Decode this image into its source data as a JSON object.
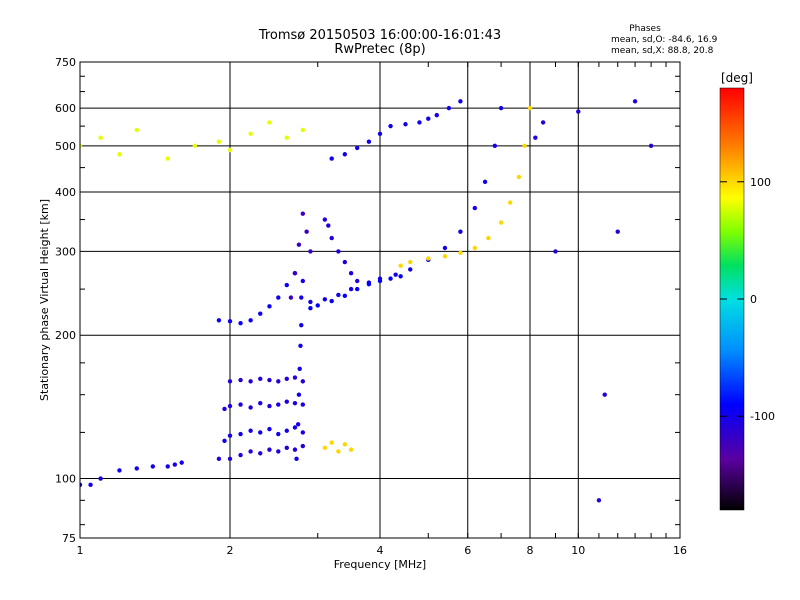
{
  "chart_data": {
    "type": "scatter",
    "title": "Tromsø 20150503 16:00:00-16:01:43",
    "subtitle": "RwPretec (8p)",
    "xlabel": "Frequency [MHz]",
    "ylabel": "Stationary phase Virtual Height [km]",
    "x_scale": "log",
    "y_scale": "log",
    "xlim": [
      1,
      16
    ],
    "ylim": [
      75,
      750
    ],
    "x_ticks": [
      1,
      2,
      4,
      6,
      8,
      10,
      16
    ],
    "y_ticks": [
      75,
      100,
      200,
      300,
      400,
      500,
      600,
      750
    ],
    "grid": true,
    "phases": {
      "title": "Phases",
      "line1": "mean, sd,O: -84.6, 16.9",
      "line2": "mean, sd,X:  88.8, 20.8"
    },
    "colorbar": {
      "label": "[deg]",
      "range": [
        -180,
        180
      ],
      "ticks": [
        100,
        0,
        -100
      ],
      "colormap": "rainbow"
    },
    "series": [
      {
        "trace": "low-trace-90-105km",
        "x": [
          1.0,
          1.05,
          1.1,
          1.2,
          1.3,
          1.4,
          1.5,
          1.55,
          1.6
        ],
        "y": [
          97,
          97,
          100,
          104,
          105,
          106,
          106,
          107,
          108
        ],
        "phase": -100
      },
      {
        "trace": "es-blocks-2-2.8MHz-a",
        "x": [
          1.9,
          2.0,
          2.1,
          2.2,
          2.3,
          2.4,
          2.5,
          2.6,
          2.7,
          2.8
        ],
        "y": [
          110,
          110,
          112,
          114,
          113,
          115,
          114,
          116,
          115,
          117
        ],
        "phase": -110
      },
      {
        "trace": "es-blocks-2-2.8MHz-b",
        "x": [
          1.95,
          2.0,
          2.1,
          2.2,
          2.3,
          2.4,
          2.5,
          2.6,
          2.7,
          2.8
        ],
        "y": [
          120,
          123,
          124,
          126,
          125,
          127,
          124,
          126,
          128,
          125
        ],
        "phase": -100
      },
      {
        "trace": "es-blocks-2-2.8MHz-c",
        "x": [
          1.95,
          2.0,
          2.1,
          2.2,
          2.3,
          2.4,
          2.5,
          2.6,
          2.7,
          2.8
        ],
        "y": [
          140,
          142,
          143,
          141,
          144,
          142,
          143,
          145,
          144,
          143
        ],
        "phase": -105
      },
      {
        "trace": "es-blocks-2-2.8MHz-d",
        "x": [
          2.0,
          2.1,
          2.2,
          2.3,
          2.4,
          2.5,
          2.6,
          2.7,
          2.8
        ],
        "y": [
          160,
          161,
          160,
          162,
          161,
          160,
          162,
          163,
          160
        ],
        "phase": -110
      },
      {
        "trace": "es-vertical-2.75MHz",
        "x": [
          2.72,
          2.74,
          2.75,
          2.76,
          2.77,
          2.78,
          2.78,
          2.8
        ],
        "y": [
          110,
          130,
          150,
          170,
          190,
          210,
          240,
          260
        ],
        "phase": -100
      },
      {
        "trace": "f1-rise-1.9-2.8MHz",
        "x": [
          1.9,
          2.0,
          2.1,
          2.2,
          2.3,
          2.4,
          2.5,
          2.6,
          2.7
        ],
        "y": [
          215,
          214,
          212,
          215,
          222,
          230,
          240,
          255,
          270
        ],
        "phase": -95
      },
      {
        "trace": "spike-2.8MHz",
        "x": [
          2.65,
          2.7,
          2.75,
          2.8,
          2.85,
          2.9
        ],
        "y": [
          240,
          270,
          310,
          360,
          330,
          300
        ],
        "phase": -120
      },
      {
        "trace": "spike-3.2MHz",
        "x": [
          3.1,
          3.15,
          3.2,
          3.3,
          3.4,
          3.5,
          3.6
        ],
        "y": [
          350,
          340,
          320,
          300,
          285,
          270,
          260
        ],
        "phase": -105
      },
      {
        "trace": "o-trace-F2",
        "x": [
          2.9,
          3.1,
          3.3,
          3.5,
          3.8,
          4.0,
          4.3,
          4.6,
          5.0,
          5.4,
          5.8,
          6.2,
          6.5,
          6.8,
          7.0
        ],
        "y": [
          235,
          238,
          243,
          250,
          258,
          263,
          268,
          275,
          288,
          305,
          330,
          370,
          420,
          500,
          600
        ],
        "phase": -100
      },
      {
        "trace": "o-trace-F2-lower-band",
        "x": [
          2.9,
          3.0,
          3.2,
          3.4,
          3.6,
          3.8,
          4.0,
          4.2,
          4.4
        ],
        "y": [
          228,
          231,
          236,
          242,
          250,
          256,
          260,
          263,
          266
        ],
        "phase": -90
      },
      {
        "trace": "x-trace-F2",
        "x": [
          4.4,
          4.6,
          5.0,
          5.4,
          5.8,
          6.2,
          6.6,
          7.0,
          7.3,
          7.6,
          7.8,
          8.0
        ],
        "y": [
          280,
          285,
          290,
          293,
          298,
          305,
          320,
          345,
          380,
          430,
          500,
          600
        ],
        "phase": 100
      },
      {
        "trace": "upper-multihop-3.2-5.8MHz",
        "x": [
          3.2,
          3.4,
          3.6,
          3.8,
          4.0,
          4.2,
          4.5,
          4.8,
          5.0,
          5.2,
          5.5,
          5.8
        ],
        "y": [
          470,
          480,
          495,
          510,
          530,
          550,
          555,
          560,
          570,
          580,
          600,
          620
        ],
        "phase": -100
      },
      {
        "trace": "upper-patch-1-2.8MHz",
        "x": [
          1.0,
          1.1,
          1.2,
          1.3,
          1.5,
          1.7,
          1.9,
          2.0,
          2.2,
          2.4,
          2.6,
          2.8
        ],
        "y": [
          500,
          520,
          480,
          540,
          470,
          500,
          510,
          490,
          530,
          560,
          520,
          540
        ],
        "phase": 80
      },
      {
        "trace": "scattered-points-high-freq",
        "x": [
          8.2,
          8.5,
          9.0,
          10.0,
          11.0,
          11.3,
          12.0,
          13.0,
          14.0
        ],
        "y": [
          520,
          560,
          300,
          590,
          90,
          150,
          330,
          620,
          500
        ],
        "phase": -110
      },
      {
        "trace": "es-cluster-3.2MHz",
        "x": [
          3.1,
          3.2,
          3.3,
          3.4,
          3.5
        ],
        "y": [
          116,
          119,
          114,
          118,
          115
        ],
        "phase": 100
      }
    ]
  }
}
